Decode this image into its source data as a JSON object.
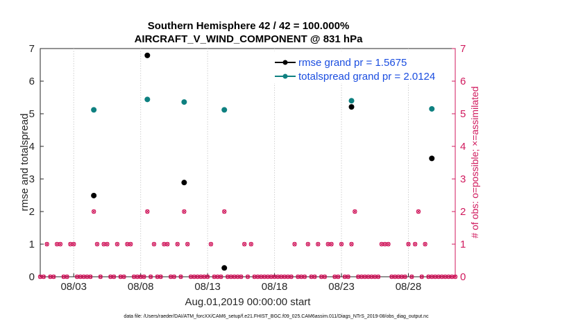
{
  "chart_data": {
    "type": "scatter",
    "title": "Southern Hemisphere 42 / 42 = 100.000%",
    "subtitle": "AIRCRAFT_V_WIND_COMPONENT @ 831 hPa",
    "xlabel": "Aug.01,2019 00:00:00 start",
    "ylabel": "rmse and totalspread",
    "ylabel_right": "# of obs: o=possible; ×=assimilated",
    "xlim": [
      0.5,
      31.5
    ],
    "ylim": [
      0,
      7
    ],
    "ylim_right": [
      0,
      7
    ],
    "x_ticks": [
      {
        "value": 3,
        "label": "08/03"
      },
      {
        "value": 8,
        "label": "08/08"
      },
      {
        "value": 13,
        "label": "08/13"
      },
      {
        "value": 18,
        "label": "08/18"
      },
      {
        "value": 23,
        "label": "08/23"
      },
      {
        "value": 28,
        "label": "08/28"
      }
    ],
    "y_ticks": [
      "0",
      "1",
      "2",
      "3",
      "4",
      "5",
      "6",
      "7"
    ],
    "y_ticks_right": [
      "0",
      "1",
      "2",
      "3",
      "4",
      "5",
      "6",
      "7"
    ],
    "series": [
      {
        "name": "rmse grand pr = 1.5675",
        "color": "#000000",
        "points": [
          [
            4.5,
            2.49
          ],
          [
            8.5,
            6.79
          ],
          [
            11.25,
            2.89
          ],
          [
            14.25,
            0.27
          ],
          [
            23.75,
            5.21
          ],
          [
            29.75,
            3.63
          ]
        ]
      },
      {
        "name": "totalspread grand pr = 2.0124",
        "color": "#0e8080",
        "points": [
          [
            4.5,
            5.12
          ],
          [
            8.5,
            5.44
          ],
          [
            11.25,
            5.36
          ],
          [
            14.25,
            5.12
          ],
          [
            23.75,
            5.4
          ],
          [
            29.75,
            5.15
          ]
        ]
      }
    ],
    "obs_counts": {
      "color": "#d0195d",
      "x": [
        0.5,
        0.75,
        1.0,
        1.25,
        1.5,
        1.75,
        2.0,
        2.25,
        2.5,
        2.75,
        3.0,
        3.25,
        3.5,
        3.75,
        4.0,
        4.25,
        4.5,
        4.75,
        5.0,
        5.25,
        5.5,
        5.75,
        6.0,
        6.25,
        6.5,
        6.75,
        7.0,
        7.25,
        7.5,
        7.75,
        8.0,
        8.25,
        8.5,
        8.75,
        9.0,
        9.25,
        9.5,
        9.75,
        10.0,
        10.25,
        10.5,
        10.75,
        11.0,
        11.25,
        11.5,
        11.75,
        12.0,
        12.25,
        12.5,
        12.75,
        13.0,
        13.25,
        13.5,
        13.75,
        14.0,
        14.25,
        14.5,
        14.75,
        15.0,
        15.25,
        15.5,
        15.75,
        16.0,
        16.25,
        16.5,
        16.75,
        17.0,
        17.25,
        17.5,
        17.75,
        18.0,
        18.25,
        18.5,
        18.75,
        19.0,
        19.25,
        19.5,
        19.75,
        20.0,
        20.25,
        20.5,
        20.75,
        21.0,
        21.25,
        21.5,
        21.75,
        22.0,
        22.25,
        22.5,
        22.75,
        23.0,
        23.25,
        23.5,
        23.75,
        24.0,
        24.25,
        24.5,
        24.75,
        25.0,
        25.25,
        25.5,
        25.75,
        26.0,
        26.25,
        26.5,
        26.75,
        27.0,
        27.25,
        27.5,
        27.75,
        28.0,
        28.25,
        28.5,
        28.75,
        29.0,
        29.25,
        29.5,
        29.75,
        30.0,
        30.25,
        30.5,
        30.75,
        31.0,
        31.25,
        31.5
      ],
      "values": [
        0,
        0,
        1,
        0,
        0,
        1,
        1,
        0,
        0,
        1,
        1,
        0,
        0,
        0,
        0,
        0,
        2,
        1,
        0,
        1,
        1,
        0,
        0,
        1,
        0,
        0,
        1,
        1,
        0,
        0,
        0,
        0,
        2,
        0,
        1,
        0,
        0,
        1,
        1,
        0,
        0,
        1,
        0,
        2,
        1,
        0,
        0,
        0,
        0,
        0,
        0,
        1,
        0,
        0,
        0,
        2,
        0,
        0,
        0,
        0,
        0,
        1,
        0,
        1,
        0,
        0,
        0,
        0,
        0,
        0,
        0,
        0,
        0,
        0,
        0,
        0,
        1,
        0,
        0,
        0,
        1,
        0,
        0,
        1,
        0,
        0,
        1,
        1,
        0,
        0,
        1,
        0,
        0,
        1,
        2,
        0,
        0,
        0,
        0,
        0,
        0,
        0,
        1,
        1,
        1,
        0,
        0,
        0,
        0,
        0,
        1,
        0,
        1,
        2,
        0,
        1,
        0,
        0,
        0,
        0,
        0,
        0,
        0,
        0,
        0
      ]
    }
  },
  "legend": {
    "rmse": "rmse grand pr = 1.5675",
    "totalspread": "totalspread grand pr = 2.0124"
  },
  "footnote": "data file: /Users/raeder/DAI/ATM_forcXX/CAM6_setup/f.e21.FHIST_BGC.f09_025.CAM6assim.011/Diags_NTrS_2019-08/obs_diag_output.nc"
}
